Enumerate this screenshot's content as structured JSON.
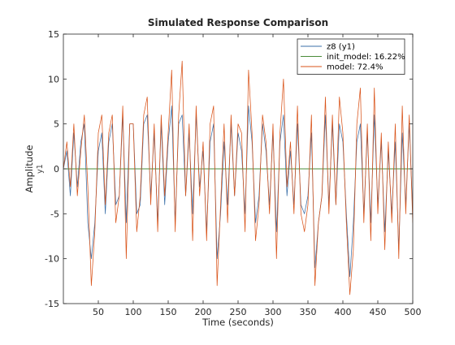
{
  "chart_data": {
    "type": "line",
    "title": "Simulated Response Comparison",
    "xlabel": "Time (seconds)",
    "ylabel": "Amplitude",
    "output_label": "y1",
    "xlim": [
      0,
      500
    ],
    "ylim": [
      -15,
      15
    ],
    "xticks": [
      50,
      100,
      150,
      200,
      250,
      300,
      350,
      400,
      450,
      500
    ],
    "yticks": [
      -15,
      -10,
      -5,
      0,
      5,
      10,
      15
    ],
    "grid": false,
    "legend_position": "top-right",
    "series": [
      {
        "name": "z8 (y1)",
        "color": "#3a6fa8",
        "x": [
          0,
          5,
          10,
          15,
          20,
          25,
          30,
          35,
          40,
          45,
          50,
          55,
          60,
          65,
          70,
          75,
          80,
          85,
          90,
          95,
          100,
          105,
          110,
          115,
          120,
          125,
          130,
          135,
          140,
          145,
          150,
          155,
          160,
          165,
          170,
          175,
          180,
          185,
          190,
          195,
          200,
          205,
          210,
          215,
          220,
          225,
          230,
          235,
          240,
          245,
          250,
          255,
          260,
          265,
          270,
          275,
          280,
          285,
          290,
          295,
          300,
          305,
          310,
          315,
          320,
          325,
          330,
          335,
          340,
          345,
          350,
          355,
          360,
          365,
          370,
          375,
          380,
          385,
          390,
          395,
          400,
          405,
          410,
          415,
          420,
          425,
          430,
          435,
          440,
          445,
          450,
          455,
          460,
          465,
          470,
          475,
          480,
          485,
          490,
          495,
          500
        ],
        "y": [
          0,
          2,
          -3,
          4,
          -2,
          3,
          5,
          -6,
          -10,
          -6,
          2,
          4,
          -5,
          3,
          5,
          -4,
          -3,
          6,
          -6,
          5,
          5,
          -5,
          -4,
          5,
          6,
          -3,
          4,
          -6,
          5,
          -4,
          3,
          7,
          -6,
          5,
          6,
          -3,
          4,
          -5,
          6,
          -2,
          2,
          -7,
          3,
          5,
          -10,
          -5,
          3,
          -4,
          5,
          -3,
          4,
          2,
          -5,
          7,
          3,
          -6,
          -3,
          5,
          2,
          -4,
          4,
          -7,
          3,
          6,
          -3,
          2,
          -4,
          5,
          -4,
          -5,
          -3,
          4,
          -11,
          -6,
          -3,
          6,
          -4,
          5,
          -4,
          5,
          3,
          -5,
          -12,
          -6,
          3,
          5,
          -5,
          4,
          -6,
          6,
          -4,
          3,
          -7,
          2,
          -5,
          3,
          -9,
          4,
          -4,
          5,
          -5
        ]
      },
      {
        "name": "init_model: 16.22%",
        "color": "#4a8c3a",
        "x": [
          0,
          50,
          100,
          150,
          200,
          250,
          300,
          350,
          400,
          450,
          500
        ],
        "y": [
          0,
          0,
          0,
          0,
          0,
          0,
          0,
          0,
          0,
          0,
          0
        ]
      },
      {
        "name": "model: 72.4%",
        "color": "#d95319",
        "x": [
          0,
          5,
          10,
          15,
          20,
          25,
          30,
          35,
          40,
          45,
          50,
          55,
          60,
          65,
          70,
          75,
          80,
          85,
          90,
          95,
          100,
          105,
          110,
          115,
          120,
          125,
          130,
          135,
          140,
          145,
          150,
          155,
          160,
          165,
          170,
          175,
          180,
          185,
          190,
          195,
          200,
          205,
          210,
          215,
          220,
          225,
          230,
          235,
          240,
          245,
          250,
          255,
          260,
          265,
          270,
          275,
          280,
          285,
          290,
          295,
          300,
          305,
          310,
          315,
          320,
          325,
          330,
          335,
          340,
          345,
          350,
          355,
          360,
          365,
          370,
          375,
          380,
          385,
          390,
          395,
          400,
          405,
          410,
          415,
          420,
          425,
          430,
          435,
          440,
          445,
          450,
          455,
          460,
          465,
          470,
          475,
          480,
          485,
          490,
          495,
          500
        ],
        "y": [
          0,
          3,
          -2,
          5,
          -3,
          2,
          6,
          -2,
          -13,
          -7,
          4,
          6,
          -4,
          4,
          6,
          -6,
          -3,
          7,
          -10,
          5,
          5,
          -7,
          -3,
          6,
          8,
          -4,
          5,
          -7,
          6,
          -3,
          4,
          11,
          -7,
          6,
          12,
          -3,
          5,
          -8,
          7,
          -3,
          3,
          -8,
          5,
          7,
          -13,
          -4,
          5,
          -6,
          6,
          -3,
          5,
          4,
          -7,
          11,
          4,
          -8,
          -4,
          6,
          3,
          -5,
          5,
          -10,
          4,
          10,
          -2,
          3,
          -5,
          7,
          -5,
          -7,
          -4,
          6,
          -13,
          -6,
          -3,
          8,
          -5,
          6,
          -4,
          8,
          4,
          -6,
          -14,
          -9,
          5,
          9,
          -6,
          5,
          -8,
          9,
          -5,
          4,
          -9,
          3,
          -6,
          5,
          -10,
          7,
          -5,
          6,
          -6
        ]
      }
    ]
  }
}
